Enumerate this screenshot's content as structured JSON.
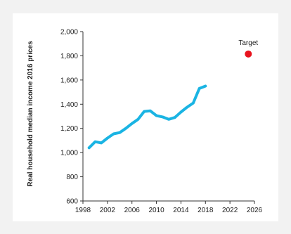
{
  "chart_data": {
    "type": "line",
    "ylabel": "Real household median income 2016 prices",
    "xlim": [
      1998,
      2026
    ],
    "ylim": [
      600,
      2000
    ],
    "xticks": [
      1998,
      2002,
      2006,
      2010,
      2014,
      2018,
      2022,
      2026
    ],
    "yticks": [
      600,
      800,
      1000,
      1200,
      1400,
      1600,
      1800,
      2000
    ],
    "ytick_labels": [
      "600",
      "800",
      "1,000",
      "1,200",
      "1,400",
      "1,600",
      "1,800",
      "2,000"
    ],
    "grid": false,
    "series": [
      {
        "color": "#1ab4e3",
        "x": [
          1999,
          2000,
          2001,
          2002,
          2003,
          2004,
          2005,
          2006,
          2007,
          2008,
          2009,
          2010,
          2011,
          2012,
          2013,
          2014,
          2015,
          2016,
          2017,
          2018
        ],
        "y": [
          1040,
          1090,
          1080,
          1120,
          1155,
          1165,
          1200,
          1240,
          1275,
          1340,
          1345,
          1305,
          1295,
          1275,
          1290,
          1335,
          1375,
          1410,
          1530,
          1550
        ]
      }
    ],
    "target": {
      "label": "Target",
      "x": 2025,
      "y": 1815,
      "color": "#e8141e"
    }
  }
}
